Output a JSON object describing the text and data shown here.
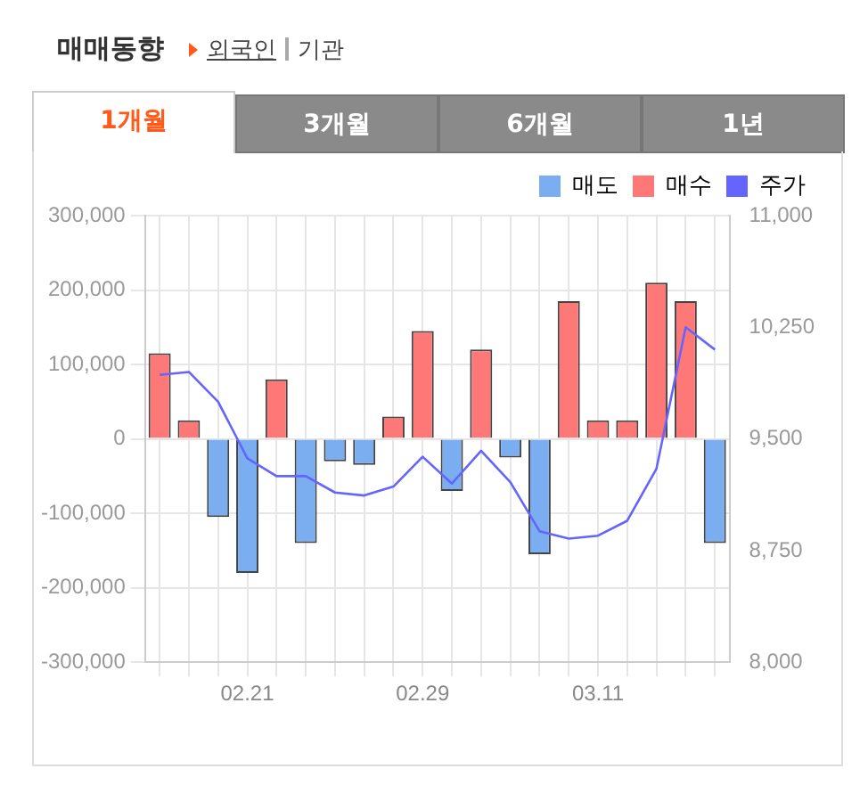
{
  "chart_data": {
    "type": "bar",
    "title": "매매동향",
    "annotations": [
      "외국인",
      "기관",
      "1개월",
      "3개월",
      "6개월",
      "1년"
    ],
    "categories": [
      null,
      null,
      null,
      "02.21",
      null,
      null,
      null,
      null,
      null,
      "02.29",
      null,
      null,
      null,
      null,
      null,
      "03.11",
      null,
      null,
      null,
      null
    ],
    "stacked": true,
    "series": [
      {
        "name": "매도",
        "color": "#7aaef0",
        "values": [
          null,
          null,
          -105000,
          -180000,
          null,
          -140000,
          -30000,
          -35000,
          null,
          null,
          -70000,
          null,
          -25000,
          -155000,
          null,
          null,
          null,
          null,
          null,
          -140000
        ]
      },
      {
        "name": "매수",
        "color": "#ff7878",
        "values": [
          115000,
          25000,
          null,
          null,
          80000,
          null,
          null,
          null,
          30000,
          145000,
          null,
          120000,
          null,
          null,
          185000,
          25000,
          25000,
          210000,
          185000,
          null
        ]
      },
      {
        "name": "주가",
        "type": "line",
        "axis": "y2",
        "color": "#6464ff",
        "values": [
          9930,
          9950,
          9750,
          9370,
          9250,
          9250,
          9140,
          9120,
          9180,
          9380,
          9200,
          9420,
          9210,
          8880,
          8830,
          8850,
          8950,
          9300,
          10250,
          10100
        ]
      }
    ],
    "ylim": [
      -300000,
      300000
    ],
    "yticks": [
      {
        "value": -300000,
        "label": "-300,000"
      },
      {
        "value": -200000,
        "label": "-200,000"
      },
      {
        "value": -100000,
        "label": "-100,000"
      },
      0,
      {
        "value": 100000,
        "label": "100,000"
      },
      {
        "value": 200000,
        "label": "200,000"
      },
      {
        "value": 300000,
        "label": "300,000"
      }
    ],
    "y2lim": [
      8000,
      11000
    ],
    "y2ticks": [
      {
        "value": 8000,
        "label": "8,000"
      },
      {
        "value": 8750,
        "label": "8,750"
      },
      {
        "value": 9500,
        "label": "9,500"
      },
      {
        "value": 10250,
        "label": "10,250"
      },
      {
        "value": 11000,
        "label": "11,000"
      }
    ],
    "grid": true,
    "legend": "top right",
    "marker": "none",
    "line_style": "solid"
  }
}
